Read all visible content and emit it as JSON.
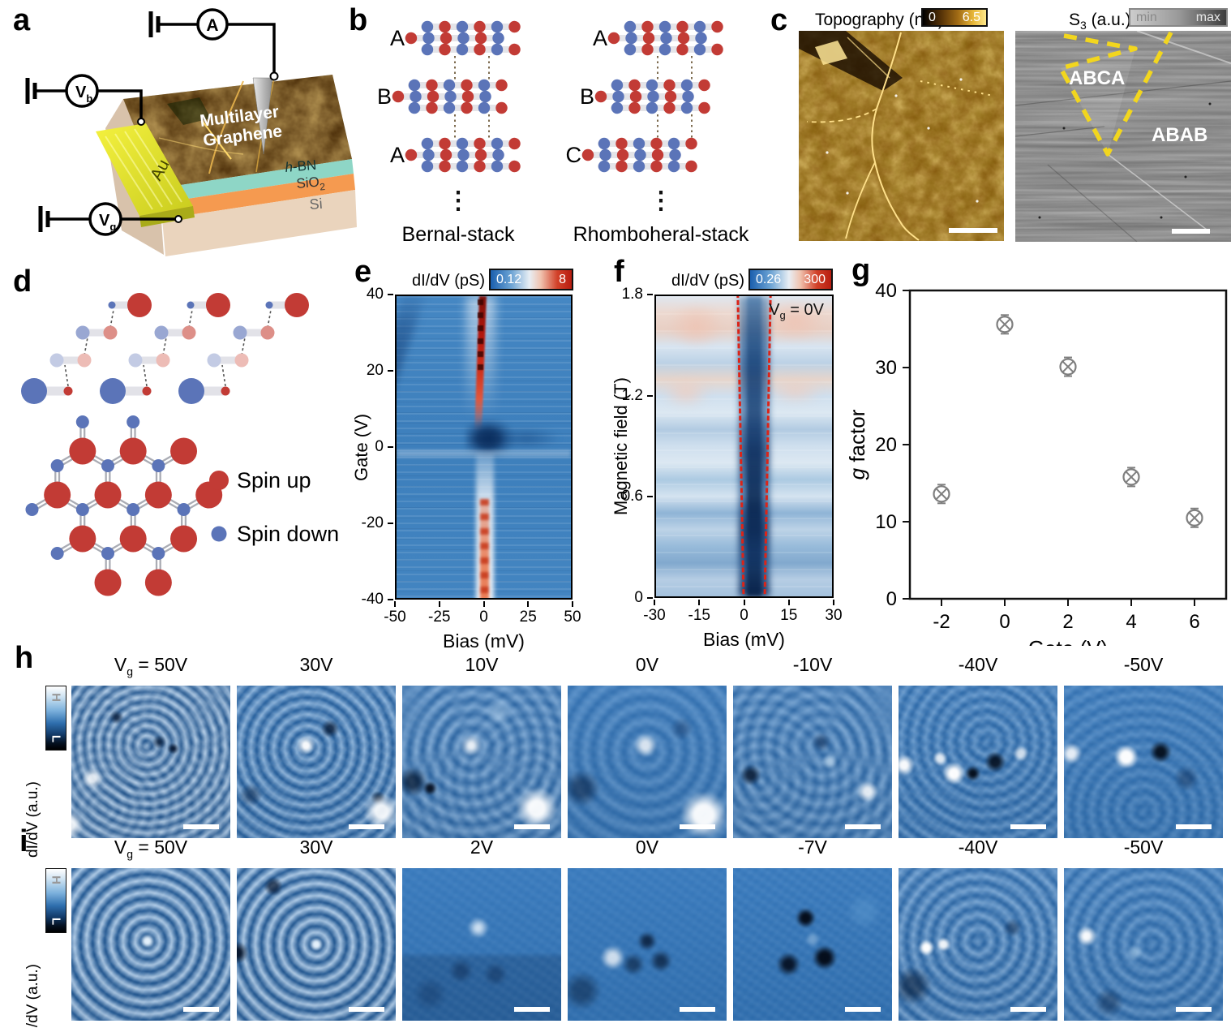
{
  "panel_letters": {
    "a": "a",
    "b": "b",
    "c": "c",
    "d": "d",
    "e": "e",
    "f": "f",
    "g": "g",
    "h": "h",
    "i": "i"
  },
  "panel_a": {
    "ammeter": "A",
    "v_bias": "V",
    "v_bias_sub": "b",
    "v_gate": "V",
    "v_gate_sub": "g",
    "electrode": "Au",
    "sample_line1": "Multilayer",
    "sample_line2": "Graphene",
    "hbn_italic": "h",
    "hbn_rest": "-BN",
    "sio2_pre": "SiO",
    "sio2_sub": "2",
    "si": "Si"
  },
  "panel_b": {
    "left": {
      "layers": [
        "A",
        "B",
        "A"
      ],
      "caption": "Bernal-stack"
    },
    "right": {
      "layers": [
        "A",
        "B",
        "C"
      ],
      "caption": "Rhomboheral-stack"
    },
    "ellipsis": "⋮",
    "atom_colors": {
      "spin_up": "#c23b35",
      "spin_down": "#5b74b8"
    }
  },
  "panel_c": {
    "topography": {
      "title": "Topography (nm)",
      "min": "0",
      "max": "6.5"
    },
    "s3": {
      "pre": "S",
      "sub": "3",
      "post": " (a.u.)",
      "min": "min",
      "max": "max"
    },
    "regions": {
      "abca": "ABCA",
      "abab": "ABAB"
    }
  },
  "panel_d": {
    "legend": [
      {
        "label": "Spin up",
        "color": "#c23b35"
      },
      {
        "label": "Spin down",
        "color": "#5b74b8"
      }
    ]
  },
  "panel_e": {
    "colorbar": {
      "label": "dI/dV (pS)",
      "min": "0.12",
      "max": "8"
    },
    "ylabel": "Gate (V)",
    "xlabel": "Bias (mV)",
    "yticks": [
      "40",
      "20",
      "0",
      "-20",
      "-40"
    ],
    "xticks": [
      "-50",
      "-25",
      "0",
      "25",
      "50"
    ]
  },
  "panel_f": {
    "colorbar": {
      "label": "dI/dV (pS)",
      "min": "0.26",
      "max": "300"
    },
    "ylabel": "Magnetic field (T)",
    "xlabel": "Bias (mV)",
    "yticks": [
      "1.8",
      "1.2",
      "0.6",
      "0"
    ],
    "xticks": [
      "-30",
      "-15",
      "0",
      "15",
      "30"
    ],
    "annotation": {
      "pre": "V",
      "sub": "g",
      "post": " = 0V"
    }
  },
  "panel_g": {
    "chart_data": {
      "type": "scatter",
      "x": [
        -2,
        0,
        2,
        4,
        6
      ],
      "y": [
        13.6,
        35.6,
        30.1,
        15.8,
        10.5
      ],
      "yerr": [
        1,
        1,
        1,
        1,
        1
      ],
      "xlabel": "Gate (V)",
      "ylabel_italic": "g",
      "ylabel_rest": " factor",
      "xticks": [
        -2,
        0,
        2,
        4,
        6
      ],
      "yticks": [
        0,
        10,
        20,
        30,
        40
      ],
      "xlim": [
        -3,
        7
      ],
      "ylim": [
        0,
        40
      ],
      "marker": "circled-x",
      "marker_color": "#7f7f7f",
      "grid": false,
      "legend_position": "none"
    }
  },
  "row_h": {
    "colorbar": {
      "high": "H",
      "low": "L",
      "label": "dI/dV (a.u.)"
    },
    "vg": {
      "pre": "V",
      "sub": "g",
      "post": " = 50V"
    },
    "labels": [
      "30V",
      "10V",
      "0V",
      "-10V",
      "-40V",
      "-50V"
    ]
  },
  "row_i": {
    "colorbar": {
      "high": "H",
      "low": "L",
      "label": "dI/dV (a.u.)"
    },
    "vg": {
      "pre": "V",
      "sub": "g",
      "post": " = 50V"
    },
    "labels": [
      "30V",
      "2V",
      "0V",
      "-7V",
      "-40V",
      "-50V"
    ]
  }
}
